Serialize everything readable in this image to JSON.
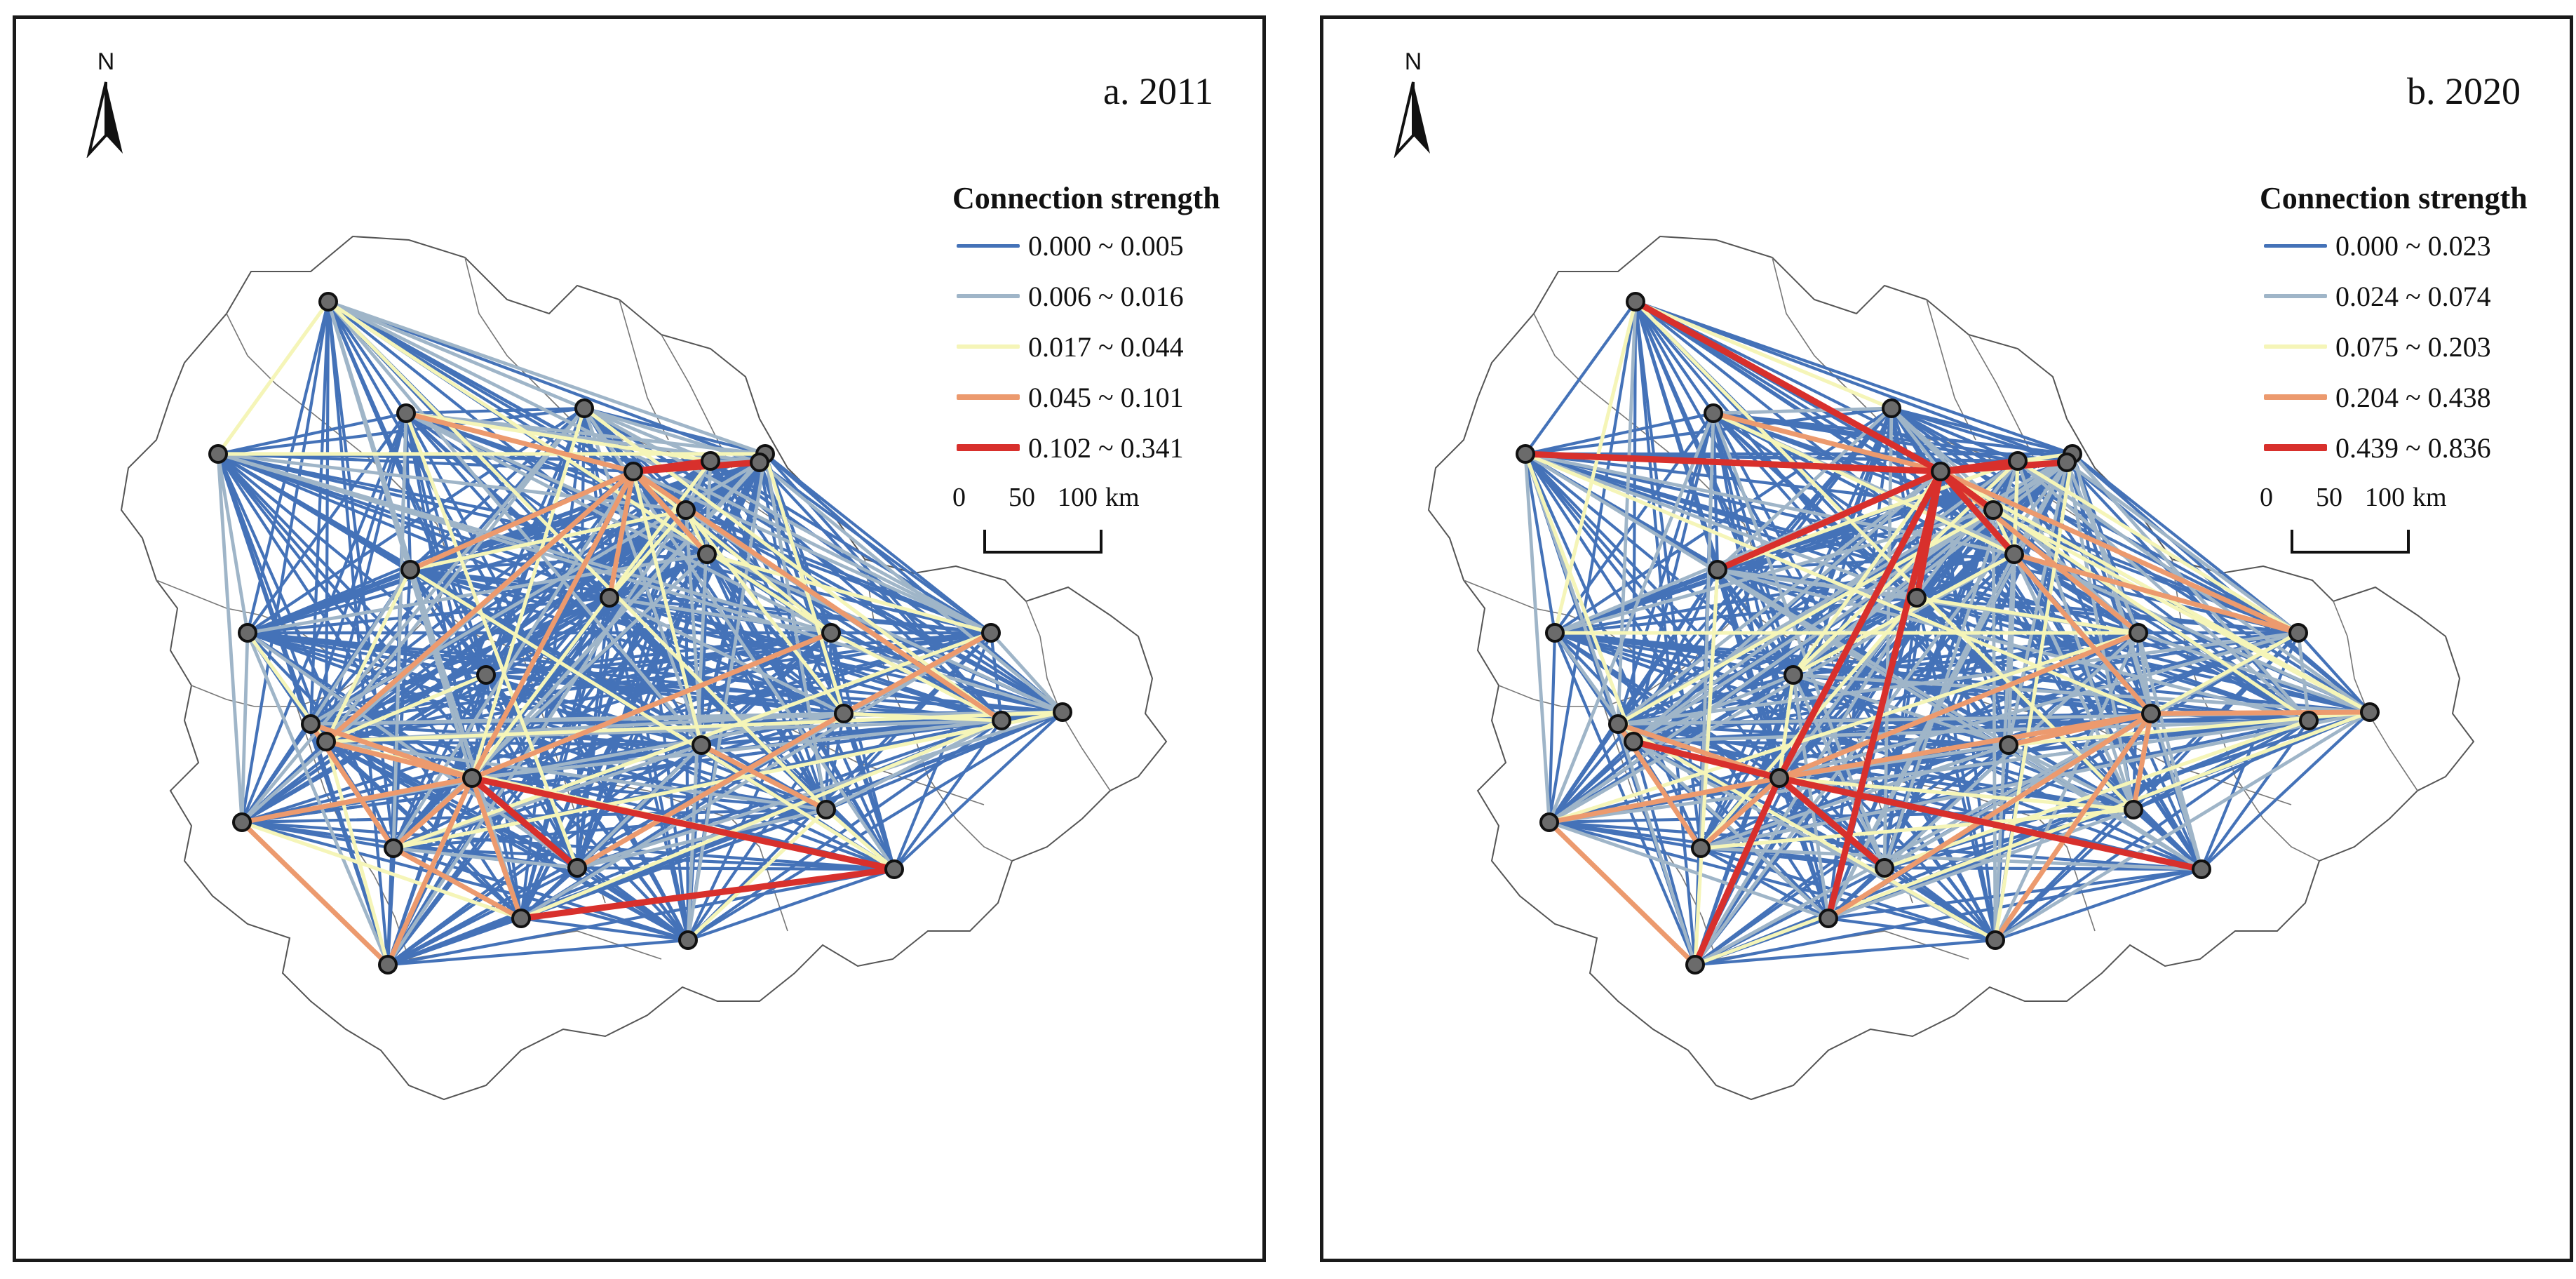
{
  "panels": [
    {
      "id": "a",
      "title": "a. 2011",
      "north_label": "N",
      "legend": {
        "title": "Connection strength",
        "items": [
          {
            "label": "0.000 ~ 0.005",
            "color": "#4472b8"
          },
          {
            "label": "0.006 ~ 0.016",
            "color": "#9fb5c8"
          },
          {
            "label": "0.017 ~ 0.044",
            "color": "#f5f5b8"
          },
          {
            "label": "0.045 ~ 0.101",
            "color": "#ec9a6e"
          },
          {
            "label": "0.102 ~ 0.341",
            "color": "#d8302c"
          }
        ]
      },
      "scale": {
        "ticks": [
          "0",
          "50",
          "100"
        ],
        "unit": "km"
      },
      "strong_links": [
        [
          8,
          10,
          4
        ],
        [
          10,
          13,
          4
        ],
        [
          5,
          10,
          3
        ],
        [
          9,
          10,
          3
        ],
        [
          2,
          10,
          3
        ],
        [
          10,
          12,
          3
        ],
        [
          10,
          20,
          3
        ],
        [
          10,
          16,
          3
        ],
        [
          10,
          18,
          3
        ],
        [
          11,
          12,
          2
        ],
        [
          20,
          26,
          4
        ],
        [
          20,
          25,
          4
        ],
        [
          26,
          27,
          4
        ],
        [
          20,
          23,
          3
        ],
        [
          16,
          20,
          3
        ],
        [
          15,
          20,
          3
        ],
        [
          20,
          28,
          3
        ],
        [
          20,
          27,
          3
        ],
        [
          14,
          20,
          3
        ],
        [
          20,
          24,
          3
        ],
        [
          23,
          28,
          3
        ],
        [
          14,
          24,
          3
        ],
        [
          24,
          27,
          3
        ],
        [
          17,
          22,
          3
        ],
        [
          22,
          25,
          3
        ],
        [
          19,
          21,
          3
        ],
        [
          0,
          1,
          2
        ],
        [
          21,
          29,
          2
        ],
        [
          18,
          22,
          2
        ],
        [
          12,
          17,
          2
        ],
        [
          7,
          16,
          2
        ],
        [
          5,
          16,
          2
        ]
      ]
    },
    {
      "id": "b",
      "title": "b. 2020",
      "north_label": "N",
      "legend": {
        "title": "Connection strength",
        "items": [
          {
            "label": "0.000 ~ 0.023",
            "color": "#4472b8"
          },
          {
            "label": "0.024 ~ 0.074",
            "color": "#9fb5c8"
          },
          {
            "label": "0.075 ~ 0.203",
            "color": "#f5f5b8"
          },
          {
            "label": "0.204 ~ 0.438",
            "color": "#ec9a6e"
          },
          {
            "label": "0.439 ~ 0.836",
            "color": "#d8302c"
          }
        ]
      },
      "scale": {
        "ticks": [
          "0",
          "50",
          "100"
        ],
        "unit": "km"
      },
      "strong_links": [
        [
          0,
          10,
          4
        ],
        [
          1,
          10,
          4
        ],
        [
          8,
          10,
          4
        ],
        [
          9,
          10,
          4
        ],
        [
          10,
          13,
          4
        ],
        [
          5,
          10,
          4
        ],
        [
          10,
          20,
          4
        ],
        [
          10,
          27,
          4
        ],
        [
          10,
          11,
          4
        ],
        [
          10,
          12,
          4
        ],
        [
          16,
          20,
          4
        ],
        [
          20,
          28,
          4
        ],
        [
          20,
          26,
          4
        ],
        [
          20,
          25,
          4
        ],
        [
          2,
          10,
          3
        ],
        [
          10,
          15,
          3
        ],
        [
          10,
          22,
          3
        ],
        [
          10,
          17,
          3
        ],
        [
          12,
          17,
          3
        ],
        [
          20,
          22,
          3
        ],
        [
          20,
          23,
          3
        ],
        [
          14,
          20,
          3
        ],
        [
          15,
          20,
          3
        ],
        [
          20,
          24,
          3
        ],
        [
          23,
          28,
          3
        ],
        [
          14,
          24,
          3
        ],
        [
          22,
          30,
          3
        ],
        [
          21,
          22,
          3
        ],
        [
          22,
          29,
          3
        ],
        [
          22,
          27,
          3
        ],
        [
          19,
          22,
          3
        ],
        [
          8,
          13,
          2
        ],
        [
          10,
          18,
          2
        ],
        [
          20,
          21,
          2
        ],
        [
          17,
          22,
          2
        ],
        [
          11,
          12,
          2
        ],
        [
          5,
          13,
          2
        ],
        [
          7,
          20,
          2
        ],
        [
          4,
          13,
          2
        ]
      ]
    }
  ]
}
